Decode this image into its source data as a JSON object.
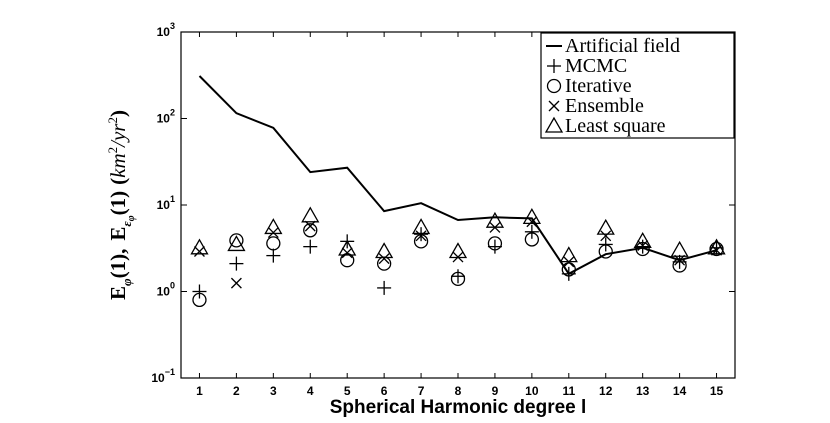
{
  "chart_data": {
    "type": "scatter",
    "title": "",
    "xlabel": "Spherical Harmonic degree l",
    "ylabel": "E_φ(1), E_εφ(1) (km²/yr²)",
    "ylabel_parts": {
      "e_phi": "E",
      "phi_sub": "φ",
      "arg1": "(1),",
      "e_eps": "E",
      "eps_sub": "ε",
      "eps_subsub": "φ",
      "arg2": "(1)",
      "units_open": "(",
      "units_km": "km",
      "units_km_exp": "2",
      "units_slash": "/yr",
      "units_yr_exp": "2",
      "units_close": ")"
    },
    "x_ticks": [
      "1",
      "2",
      "3",
      "4",
      "5",
      "6",
      "7",
      "8",
      "9",
      "10",
      "11",
      "12",
      "13",
      "14",
      "15"
    ],
    "y_ticks": [
      {
        "base": "10",
        "exp": "−1",
        "value": 0.1
      },
      {
        "base": "10",
        "exp": "0",
        "value": 1
      },
      {
        "base": "10",
        "exp": "1",
        "value": 10
      },
      {
        "base": "10",
        "exp": "2",
        "value": 100
      },
      {
        "base": "10",
        "exp": "3",
        "value": 1000
      }
    ],
    "xlim": [
      0.5,
      15.5
    ],
    "ylim": [
      0.1,
      1000
    ],
    "yscale": "log",
    "grid": false,
    "legend_position": "top-right",
    "x": [
      1,
      2,
      3,
      4,
      5,
      6,
      7,
      8,
      9,
      10,
      11,
      12,
      13,
      14,
      15
    ],
    "series": [
      {
        "name": "Artificial field",
        "marker": "line",
        "values": [
          310,
          115,
          78,
          24,
          27,
          8.5,
          10.5,
          6.7,
          7.2,
          7.0,
          1.6,
          2.7,
          3.2,
          2.3,
          3.0
        ]
      },
      {
        "name": "MCMC",
        "marker": "plus",
        "values": [
          1.0,
          2.1,
          2.6,
          3.3,
          3.8,
          1.1,
          4.6,
          1.5,
          3.3,
          4.9,
          1.6,
          3.5,
          3.3,
          2.2,
          3.2
        ]
      },
      {
        "name": "Iterative",
        "marker": "circle",
        "values": [
          0.8,
          3.9,
          3.6,
          5.1,
          2.3,
          2.1,
          3.8,
          1.4,
          3.6,
          4.0,
          1.8,
          2.9,
          3.1,
          2.0,
          3.1
        ]
      },
      {
        "name": "Ensemble",
        "marker": "x",
        "values": [
          2.9,
          1.25,
          4.8,
          5.7,
          2.8,
          2.4,
          4.4,
          2.5,
          5.5,
          6.4,
          2.2,
          4.4,
          3.4,
          2.3,
          3.0
        ]
      },
      {
        "name": "Least square",
        "marker": "triangle",
        "values": [
          3.2,
          3.5,
          5.5,
          7.5,
          3.1,
          2.9,
          5.5,
          2.9,
          6.5,
          7.2,
          2.6,
          5.4,
          3.8,
          3.0,
          3.2
        ]
      }
    ]
  }
}
